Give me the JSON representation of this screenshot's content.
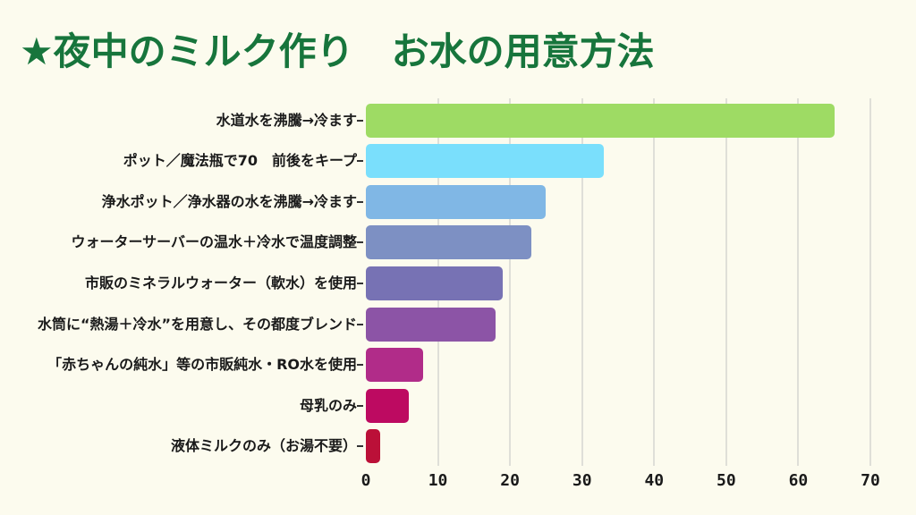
{
  "page": {
    "background_color": "#FCFBEE"
  },
  "header": {
    "title": "★夜中のミルク作り　お水の用意方法",
    "title_color": "#17753C"
  },
  "chart_data": {
    "type": "bar",
    "orientation": "horizontal",
    "title": "★夜中のミルク作り　お水の用意方法",
    "categories": [
      "水道水を沸騰→冷ます",
      "ポット／魔法瓶で70　前後をキープ",
      "浄水ポット／浄水器の水を沸騰→冷ます",
      "ウォーターサーバーの温水＋冷水で温度調整",
      "市販のミネラルウォーター（軟水）を使用",
      "水筒に“熱湯＋冷水”を用意し、その都度ブレンド",
      "「赤ちゃんの純水」等の市販純水・RO水を使用",
      "母乳のみ",
      "液体ミルクのみ（お湯不要）"
    ],
    "values": [
      65,
      33,
      25,
      23,
      19,
      18,
      8,
      6,
      2
    ],
    "bar_colors": [
      "#9EDB64",
      "#7ADFFC",
      "#80B7E5",
      "#7D90C3",
      "#7772B4",
      "#8C54A6",
      "#B12C89",
      "#BD0A61",
      "#BB1038"
    ],
    "xlabel": "",
    "ylabel": "",
    "xlim": [
      0,
      70
    ],
    "x_ticks": [
      0,
      10,
      20,
      30,
      40,
      50,
      60,
      70
    ],
    "grid": true,
    "gridline_color": "#DFDFD8",
    "legend": false
  }
}
